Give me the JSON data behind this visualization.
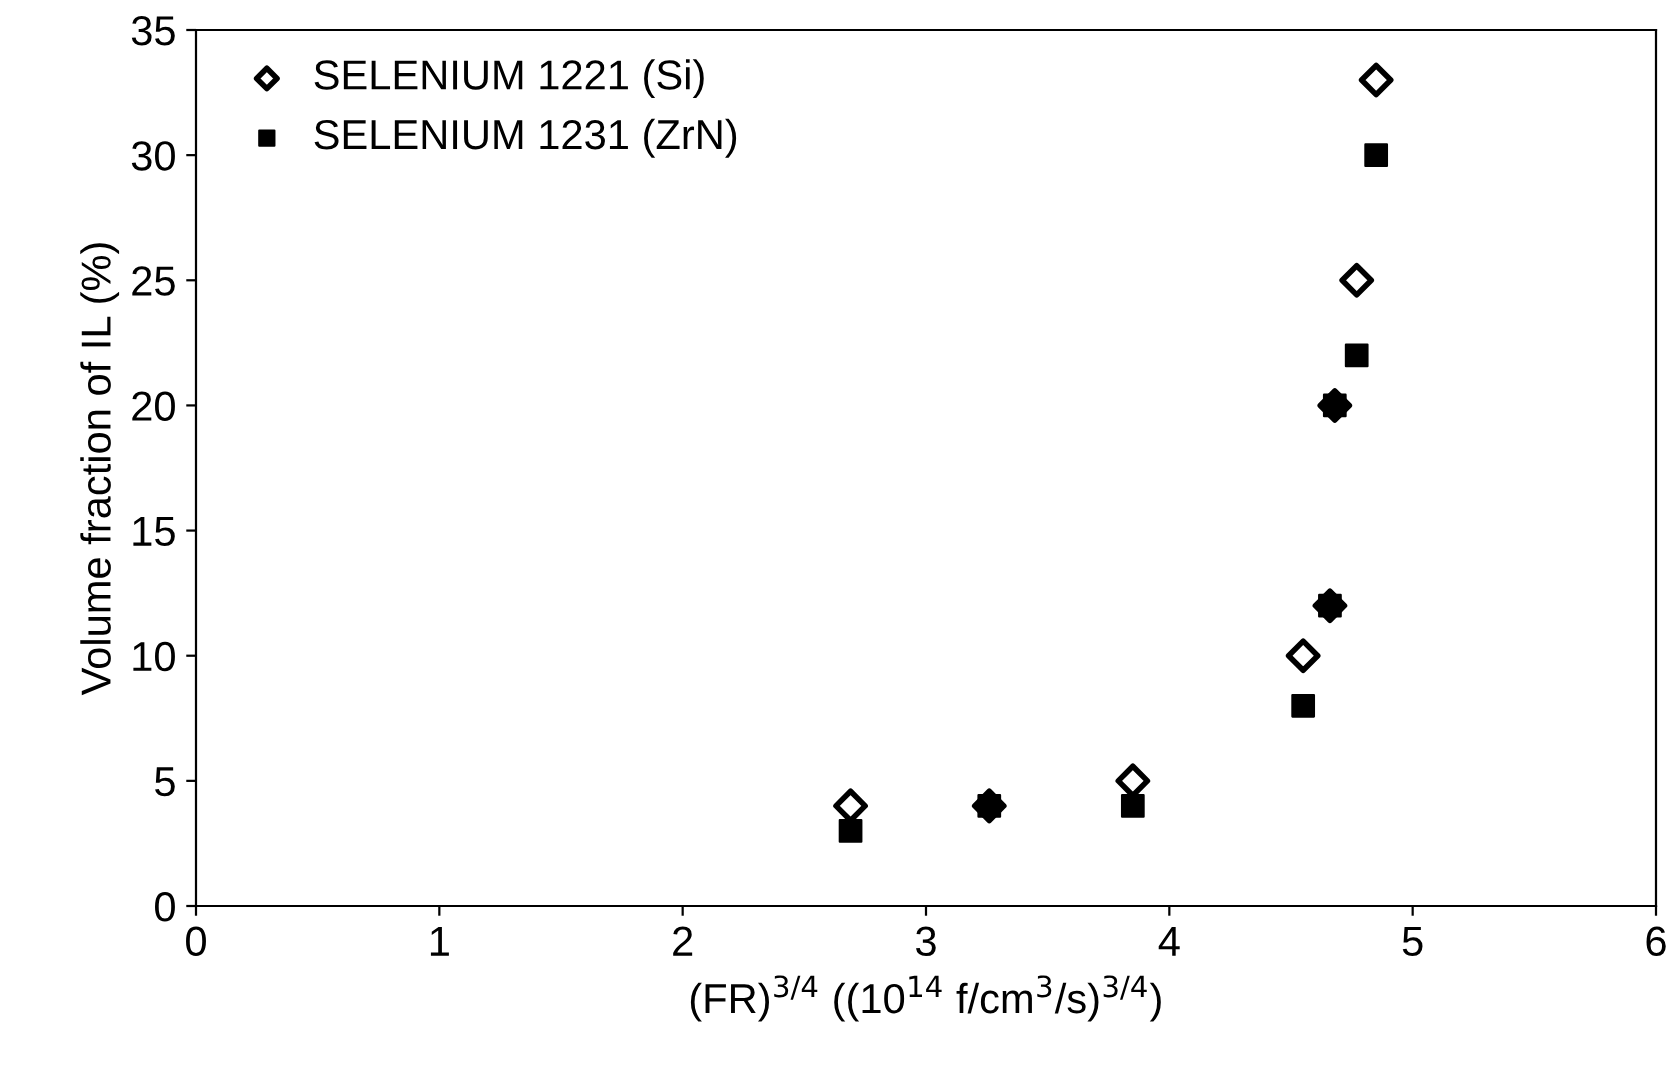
{
  "chart_data": {
    "type": "scatter",
    "xlabel": "(FR)$^{3/4}$ ((10$^{14}$ f/cm$^{3}$/s)$^{3/4}$)",
    "ylabel": "Volume fraction of IL (%)",
    "x": [
      2.69,
      3.26,
      3.85,
      4.55,
      4.66,
      4.68,
      4.77,
      4.85
    ],
    "series": [
      {
        "name": "SELENIUM 1221 (Si)",
        "color": "#000000",
        "marker": "diamond",
        "values": [
          4,
          4,
          5,
          10,
          12,
          20,
          25,
          33
        ]
      },
      {
        "name": "SELENIUM 1231 (ZrN)",
        "color": "#000000",
        "marker": "square",
        "values": [
          3,
          4,
          4,
          8,
          12,
          20,
          22,
          30
        ]
      }
    ],
    "xlim": [
      0,
      6
    ],
    "xticks": [
      0,
      1,
      2,
      3,
      4,
      5,
      6
    ],
    "ylim": [
      0,
      35
    ],
    "yticks": [
      0,
      5,
      10,
      15,
      20,
      25,
      30,
      35
    ],
    "grid": false,
    "legend": "top left"
  }
}
